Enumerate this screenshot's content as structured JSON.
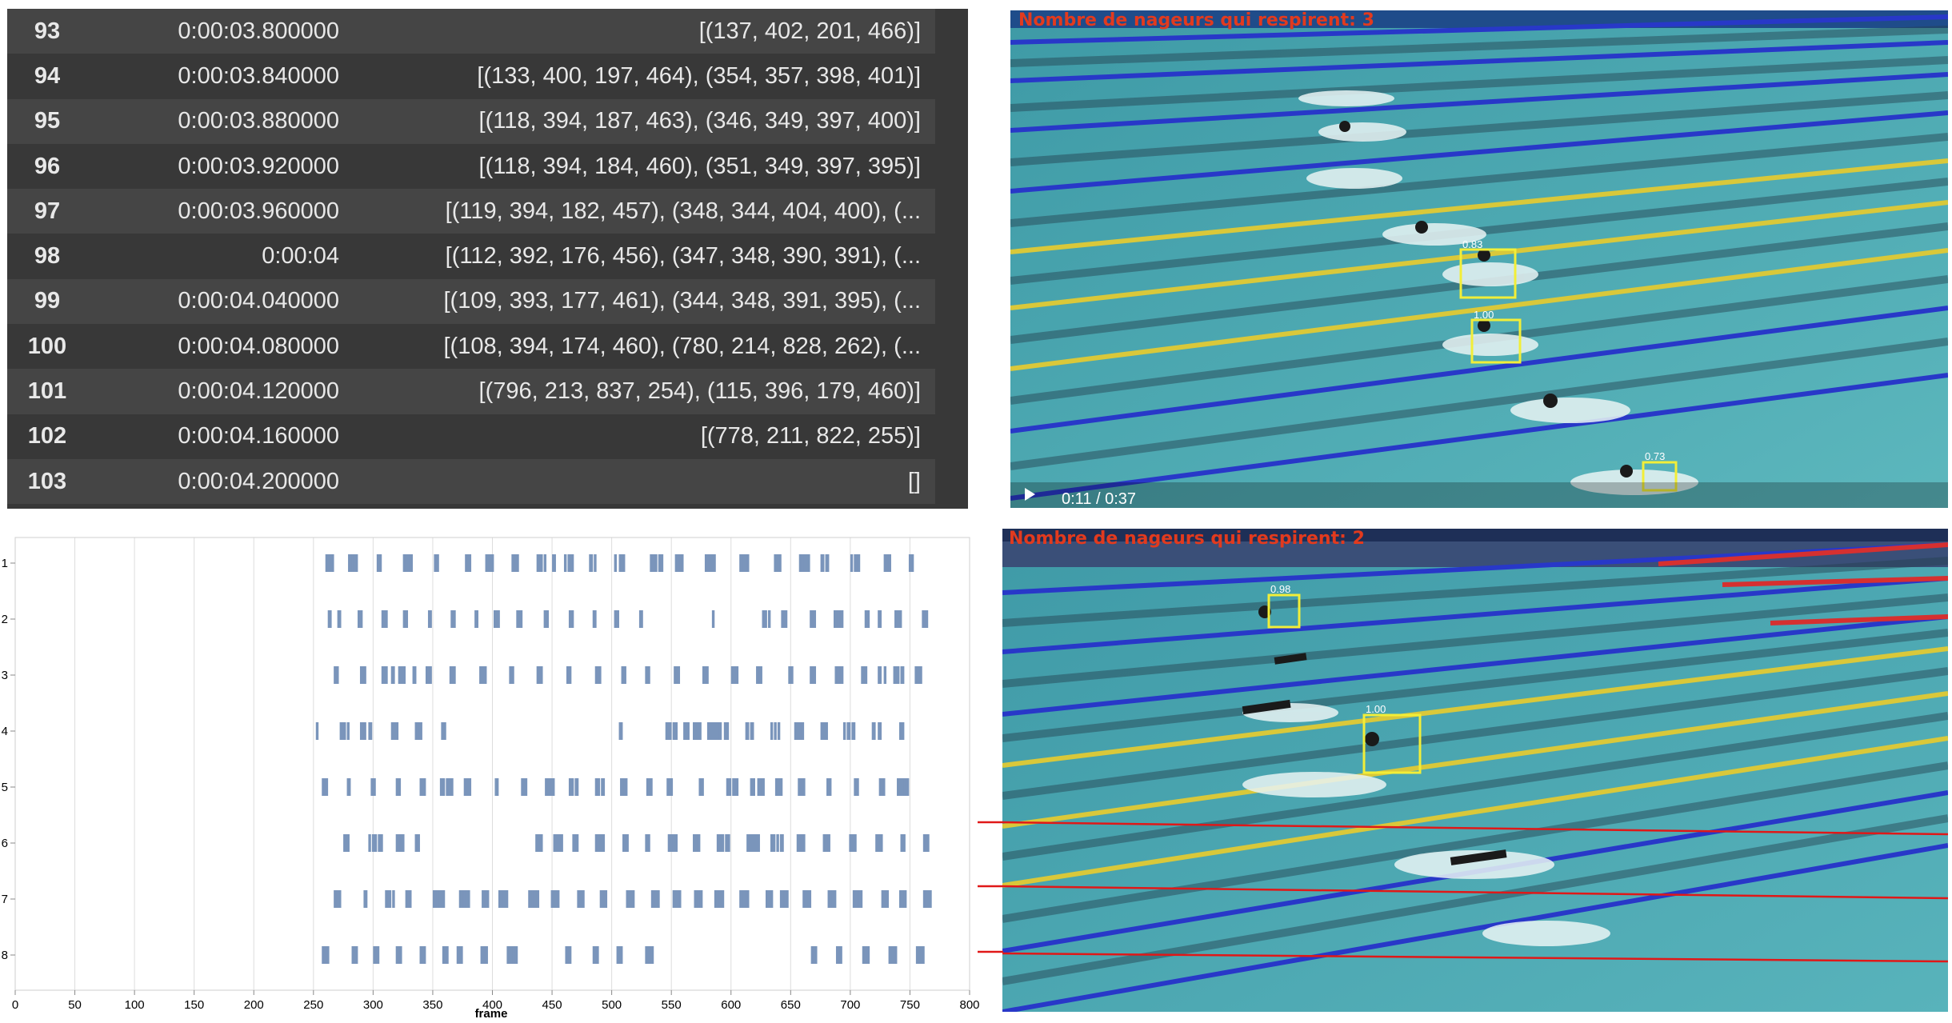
{
  "table": {
    "rows": [
      {
        "index": "93",
        "time": "0:00:03.800000",
        "boxes": "[(137, 402, 201, 466)]"
      },
      {
        "index": "94",
        "time": "0:00:03.840000",
        "boxes": "[(133, 400, 197, 464), (354, 357, 398, 401)]"
      },
      {
        "index": "95",
        "time": "0:00:03.880000",
        "boxes": "[(118, 394, 187, 463), (346, 349, 397, 400)]"
      },
      {
        "index": "96",
        "time": "0:00:03.920000",
        "boxes": "[(118, 394, 184, 460), (351, 349, 397, 395)]"
      },
      {
        "index": "97",
        "time": "0:00:03.960000",
        "boxes": "[(119, 394, 182, 457), (348, 344, 404, 400), (..."
      },
      {
        "index": "98",
        "time": "0:00:04",
        "boxes": "[(112, 392, 176, 456), (347, 348, 390, 391), (..."
      },
      {
        "index": "99",
        "time": "0:00:04.040000",
        "boxes": "[(109, 393, 177, 461), (344, 348, 391, 395), (..."
      },
      {
        "index": "100",
        "time": "0:00:04.080000",
        "boxes": "[(108, 394, 174, 460), (780, 214, 828, 262), (..."
      },
      {
        "index": "101",
        "time": "0:00:04.120000",
        "boxes": "[(796, 213, 837, 254), (115, 396, 179, 460)]"
      },
      {
        "index": "102",
        "time": "0:00:04.160000",
        "boxes": "[(778, 211, 822, 255)]"
      },
      {
        "index": "103",
        "time": "0:00:04.200000",
        "boxes": "[]"
      }
    ]
  },
  "video_top": {
    "overlay": "Nombre de nageurs qui respirent: 3",
    "timer": "0:11 / 0:37",
    "detections": [
      "0.83",
      "1.00",
      "0.73"
    ]
  },
  "video_bottom": {
    "overlay": "Nombre de nageurs qui respirent: 2",
    "detections": [
      "0.98",
      "1.00"
    ]
  },
  "chart_data": {
    "type": "scatter",
    "xlabel": "frame",
    "xlim": [
      0,
      800
    ],
    "xticks": [
      0,
      50,
      100,
      150,
      200,
      250,
      300,
      350,
      400,
      450,
      500,
      550,
      600,
      650,
      700,
      750,
      800
    ],
    "lanes": [
      1,
      2,
      3,
      4,
      5,
      6,
      7,
      8
    ],
    "ytick_labels": [
      "1",
      "2",
      "3",
      "4",
      "5",
      "6",
      "7",
      "8"
    ],
    "grid": "vertical",
    "mark_color": "#7a95bb",
    "events": [
      [
        261,
        263,
        264,
        265,
        266,
        280,
        282,
        283,
        284,
        285,
        286,
        304,
        305,
        306,
        326,
        328,
        329,
        331,
        332,
        352,
        353,
        354,
        378,
        379,
        380,
        381,
        395,
        397,
        398,
        399,
        400,
        417,
        419,
        420,
        421,
        438,
        439,
        441,
        444,
        451,
        452,
        461,
        464,
        466,
        467,
        482,
        483,
        486,
        503,
        507,
        509,
        510,
        533,
        534,
        535,
        536,
        537,
        540,
        542,
        554,
        555,
        556,
        557,
        558,
        559,
        579,
        581,
        582,
        583,
        584,
        584,
        586,
        608,
        609,
        611,
        612,
        614,
        637,
        638,
        640,
        641,
        658,
        660,
        662,
        663,
        664,
        665,
        676,
        677,
        680,
        681,
        701,
        704,
        705,
        707,
        729,
        730,
        732,
        733,
        750,
        751,
        752
      ],
      [
        263,
        264,
        271,
        272,
        288,
        289,
        290,
        308,
        309,
        310,
        311,
        326,
        327,
        328,
        347,
        348,
        366,
        367,
        368,
        386,
        387,
        402,
        403,
        404,
        405,
        421,
        422,
        423,
        424,
        444,
        445,
        446,
        465,
        466,
        467,
        485,
        486,
        503,
        504,
        505,
        524,
        525,
        585,
        627,
        628,
        629,
        632,
        643,
        644,
        645,
        646,
        667,
        668,
        669,
        670,
        687,
        688,
        690,
        692,
        693,
        713,
        714,
        715,
        724,
        725,
        738,
        739,
        741,
        742,
        761,
        762,
        763,
        764
      ],
      [
        268,
        269,
        270,
        290,
        291,
        292,
        293,
        308,
        309,
        311,
        316,
        317,
        322,
        323,
        325,
        326,
        334,
        335,
        345,
        346,
        347,
        348,
        365,
        366,
        367,
        368,
        390,
        391,
        392,
        394,
        415,
        416,
        417,
        438,
        439,
        440,
        441,
        463,
        464,
        465,
        487,
        488,
        490,
        509,
        510,
        511,
        529,
        530,
        531,
        553,
        554,
        555,
        556,
        577,
        578,
        579,
        580,
        601,
        602,
        604,
        605,
        622,
        623,
        624,
        625,
        649,
        650,
        651,
        667,
        668,
        669,
        670,
        688,
        689,
        690,
        692,
        693,
        710,
        711,
        712,
        713,
        724,
        725,
        729,
        737,
        739,
        740,
        743,
        744,
        755,
        756,
        757,
        758,
        759
      ],
      [
        253,
        273,
        275,
        276,
        279,
        290,
        291,
        293,
        297,
        298,
        316,
        317,
        319,
        320,
        336,
        338,
        339,
        340,
        358,
        359,
        360,
        507,
        508,
        546,
        548,
        549,
        552,
        554,
        561,
        562,
        563,
        564,
        569,
        570,
        571,
        572,
        574,
        581,
        583,
        585,
        586,
        587,
        589,
        591,
        595,
        596,
        597,
        613,
        614,
        617,
        618,
        634,
        637,
        640,
        654,
        656,
        657,
        659,
        660,
        676,
        677,
        679,
        680,
        695,
        698,
        699,
        702,
        703,
        719,
        720,
        724,
        725,
        742,
        743,
        744
      ],
      [
        258,
        259,
        260,
        261,
        279,
        280,
        299,
        300,
        301,
        320,
        321,
        322,
        340,
        341,
        342,
        343,
        357,
        358,
        359,
        362,
        363,
        364,
        366,
        377,
        378,
        379,
        381,
        403,
        404,
        425,
        426,
        427,
        428,
        445,
        446,
        447,
        449,
        450,
        451,
        465,
        466,
        467,
        470,
        471,
        487,
        488,
        489,
        492,
        493,
        508,
        509,
        510,
        511,
        512,
        530,
        531,
        532,
        533,
        547,
        548,
        549,
        550,
        574,
        575,
        576,
        597,
        598,
        599,
        602,
        603,
        604,
        605,
        617,
        618,
        619,
        623,
        624,
        625,
        626,
        627,
        638,
        639,
        640,
        641,
        642,
        657,
        658,
        659,
        660,
        661,
        681,
        682,
        683,
        704,
        705,
        706,
        725,
        726,
        727,
        728,
        740,
        741,
        743,
        744,
        746,
        747,
        748
      ],
      [
        276,
        277,
        278,
        279,
        297,
        300,
        301,
        302,
        305,
        306,
        307,
        320,
        321,
        322,
        323,
        324,
        325,
        336,
        337,
        338,
        437,
        439,
        441,
        452,
        453,
        454,
        456,
        457,
        458,
        468,
        469,
        470,
        471,
        487,
        488,
        490,
        491,
        492,
        493,
        510,
        511,
        512,
        513,
        529,
        530,
        531,
        548,
        549,
        550,
        552,
        553,
        554,
        569,
        570,
        571,
        572,
        573,
        589,
        590,
        591,
        593,
        596,
        597,
        598,
        614,
        616,
        617,
        618,
        619,
        620,
        622,
        623,
        634,
        635,
        636,
        639,
        642,
        643,
        656,
        657,
        658,
        659,
        660,
        661,
        678,
        679,
        680,
        681,
        682,
        700,
        701,
        702,
        703,
        704,
        722,
        723,
        724,
        725,
        726,
        743,
        744,
        745,
        762,
        763,
        764,
        765
      ],
      [
        268,
        269,
        270,
        271,
        272,
        293,
        294,
        311,
        312,
        313,
        314,
        317,
        328,
        329,
        330,
        331,
        331,
        351,
        352,
        353,
        354,
        355,
        356,
        357,
        358,
        359,
        373,
        374,
        375,
        376,
        377,
        378,
        379,
        380,
        392,
        393,
        394,
        395,
        396,
        406,
        407,
        409,
        410,
        411,
        412,
        431,
        432,
        434,
        435,
        436,
        437,
        438,
        450,
        451,
        452,
        453,
        454,
        455,
        472,
        473,
        474,
        475,
        476,
        491,
        492,
        493,
        494,
        495,
        513,
        514,
        515,
        516,
        517,
        518,
        534,
        535,
        536,
        537,
        538,
        539,
        552,
        553,
        554,
        555,
        556,
        557,
        570,
        571,
        572,
        573,
        574,
        575,
        587,
        588,
        589,
        590,
        591,
        592,
        593,
        608,
        609,
        610,
        611,
        612,
        613,
        614,
        630,
        631,
        632,
        633,
        634,
        642,
        643,
        644,
        645,
        646,
        647,
        661,
        662,
        663,
        664,
        665,
        666,
        682,
        683,
        684,
        685,
        686,
        687,
        703,
        704,
        705,
        706,
        707,
        708,
        709,
        727,
        728,
        729,
        730,
        731,
        742,
        743,
        744,
        745,
        746,
        762,
        763,
        764,
        765,
        766,
        767
      ],
      [
        258,
        259,
        260,
        261,
        262,
        283,
        284,
        286,
        301,
        302,
        303,
        304,
        320,
        321,
        322,
        323,
        340,
        341,
        342,
        343,
        359,
        360,
        361,
        362,
        371,
        372,
        373,
        374,
        391,
        392,
        393,
        394,
        395,
        413,
        414,
        416,
        418,
        419,
        420,
        462,
        463,
        464,
        465,
        485,
        486,
        487,
        488,
        505,
        506,
        507,
        508,
        529,
        530,
        531,
        532,
        533,
        534,
        668,
        669,
        670,
        671,
        689,
        690,
        691,
        692,
        711,
        712,
        713,
        714,
        715,
        733,
        734,
        736,
        737,
        738,
        756,
        757,
        758,
        759,
        760,
        761
      ]
    ]
  }
}
